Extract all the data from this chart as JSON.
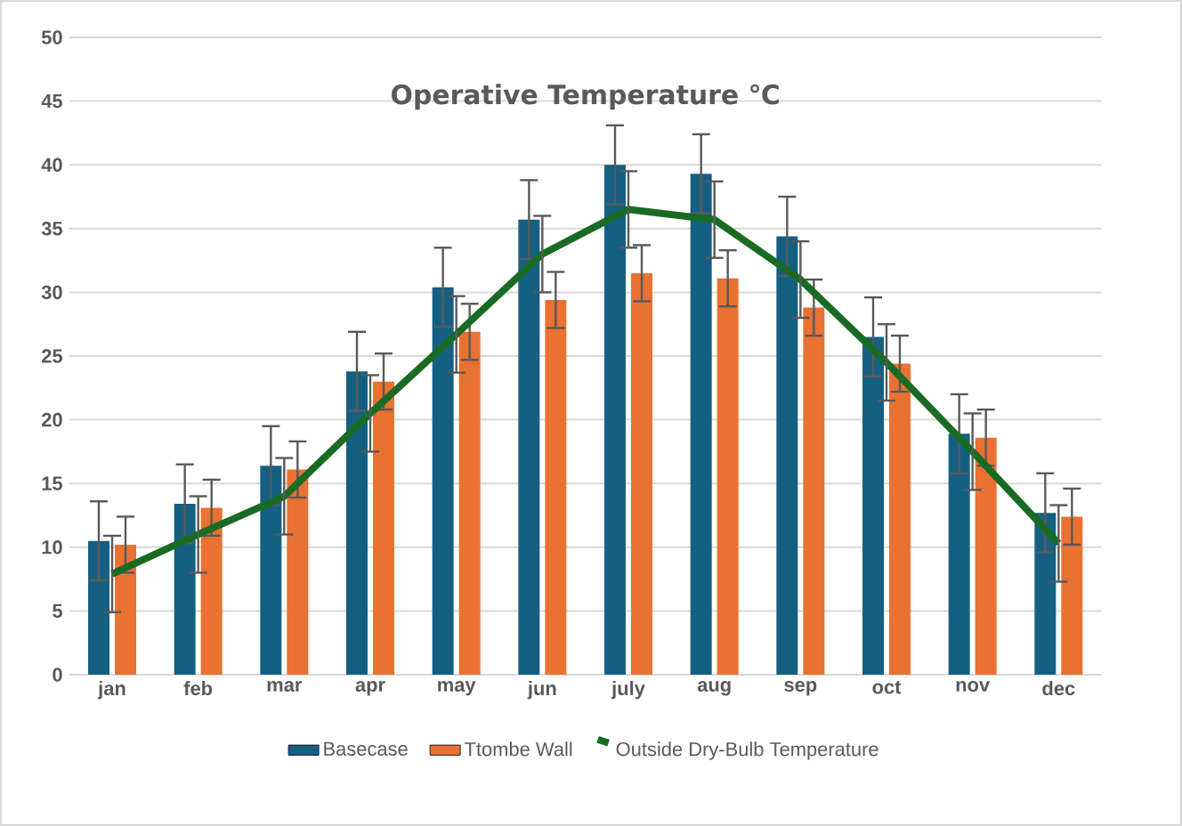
{
  "chart_data": {
    "type": "bar",
    "title": "Operative Temperature ℃",
    "categories": [
      "jan",
      "feb",
      "mar",
      "apr",
      "may",
      "jun",
      "july",
      "aug",
      "sep",
      "oct",
      "nov",
      "dec"
    ],
    "series": [
      {
        "name": "Basecase",
        "color": "#156082",
        "values": [
          10.5,
          13.4,
          16.4,
          23.8,
          30.4,
          35.7,
          40.0,
          39.3,
          34.4,
          26.5,
          18.9,
          12.7
        ],
        "errors": [
          3.1,
          3.1,
          3.1,
          3.1,
          3.1,
          3.1,
          3.1,
          3.1,
          3.1,
          3.1,
          3.1,
          3.1
        ]
      },
      {
        "name": "Ttombe Wall",
        "color": "#e97132",
        "values": [
          10.2,
          13.1,
          16.1,
          23.0,
          26.9,
          29.4,
          31.5,
          31.1,
          28.8,
          24.4,
          18.6,
          12.4
        ],
        "errors": [
          2.2,
          2.2,
          2.2,
          2.2,
          2.2,
          2.2,
          2.2,
          2.2,
          2.2,
          2.2,
          2.2,
          2.2
        ]
      },
      {
        "name": "Outside Dry-Bulb Temperature",
        "type": "line",
        "color": "#196b24",
        "values": [
          7.9,
          11.0,
          14.0,
          20.5,
          26.7,
          33.0,
          36.5,
          35.7,
          31.0,
          24.5,
          17.5,
          10.3
        ],
        "errors": [
          3,
          3,
          3,
          3,
          3,
          3,
          3,
          3,
          3,
          3,
          3,
          3
        ]
      }
    ],
    "ylim": [
      0,
      50
    ],
    "yticks": [
      0,
      5,
      10,
      15,
      20,
      25,
      30,
      35,
      40,
      45,
      50
    ],
    "grid": "y",
    "legend": "bottom",
    "marker": "none",
    "line_style": "solid"
  }
}
